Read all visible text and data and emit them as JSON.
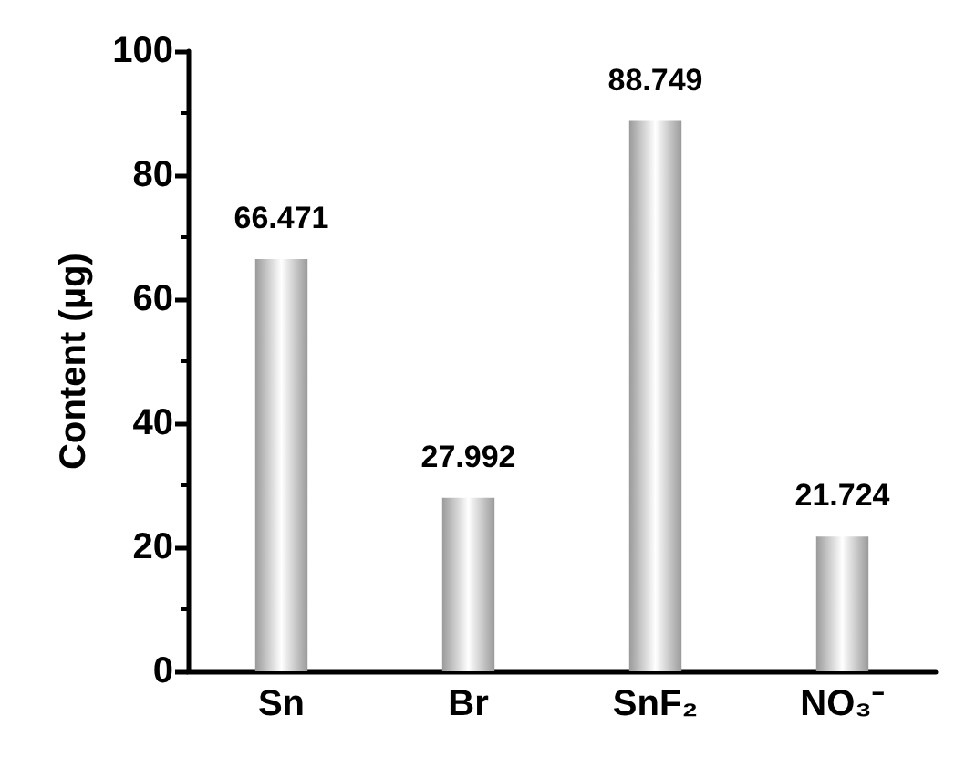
{
  "chart_data": {
    "type": "bar",
    "ylabel": "Content (μg)",
    "categories": [
      "Sn",
      "Br",
      "SnF₂",
      "NO₃⁻"
    ],
    "values": [
      66.471,
      27.992,
      88.749,
      21.724
    ],
    "color": "#9a9a9a",
    "ylim": [
      0,
      100
    ],
    "yticks": [
      0,
      20,
      40,
      60,
      80,
      100
    ],
    "data_labels": true
  }
}
